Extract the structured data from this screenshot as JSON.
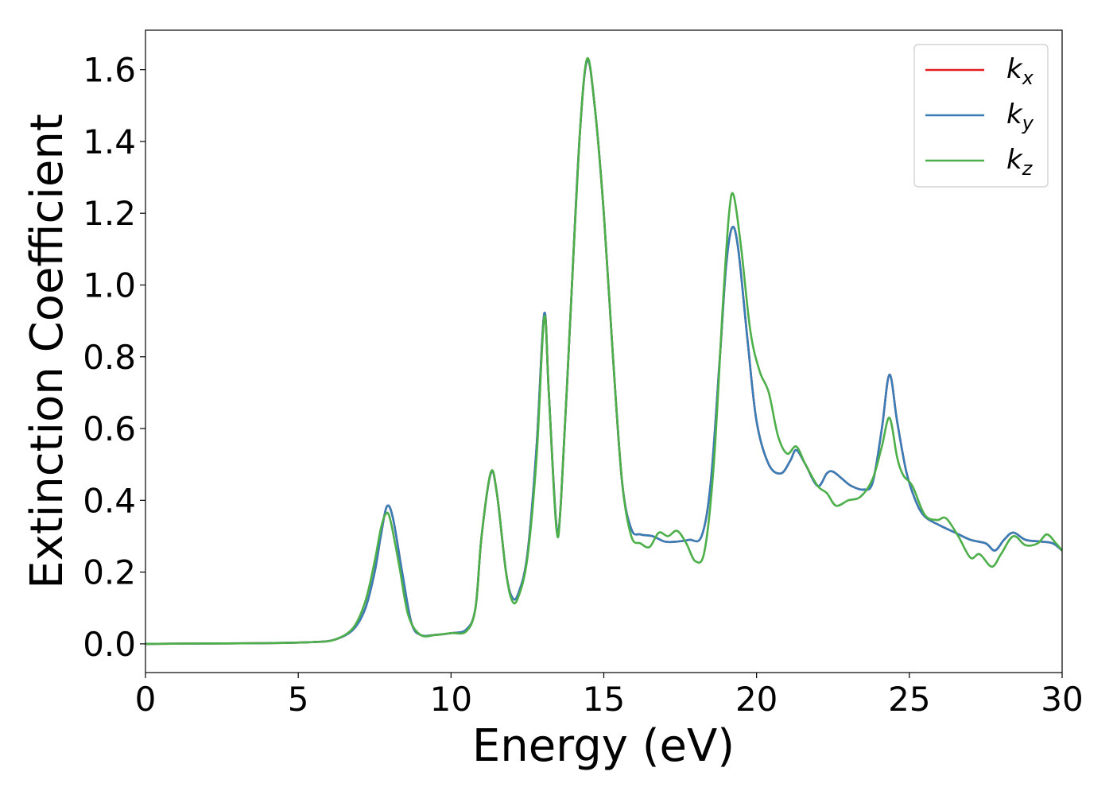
{
  "chart_data": {
    "type": "line",
    "title": "",
    "xlabel": "Energy (eV)",
    "ylabel": "Extinction Coefficient",
    "xlim": [
      0,
      30
    ],
    "ylim": [
      -0.08,
      1.71
    ],
    "xticks": [
      0,
      5,
      10,
      15,
      20,
      25,
      30
    ],
    "xtick_labels": [
      "0",
      "5",
      "10",
      "15",
      "20",
      "25",
      "30"
    ],
    "yticks": [
      0.0,
      0.2,
      0.4,
      0.6,
      0.8,
      1.0,
      1.2,
      1.4,
      1.6
    ],
    "ytick_labels": [
      "0.0",
      "0.2",
      "0.4",
      "0.6",
      "0.8",
      "1.0",
      "1.2",
      "1.4",
      "1.6"
    ],
    "grid": false,
    "legend_position": "top-right",
    "series": [
      {
        "name": "k",
        "subscript": "x",
        "color": "#e41a1c",
        "points": [
          [
            0,
            0.0
          ],
          [
            2,
            0.001
          ],
          [
            4,
            0.002
          ],
          [
            5.5,
            0.005
          ],
          [
            6.2,
            0.012
          ],
          [
            6.8,
            0.04
          ],
          [
            7.2,
            0.1
          ],
          [
            7.5,
            0.2
          ],
          [
            7.7,
            0.3
          ],
          [
            7.9,
            0.383
          ],
          [
            8.1,
            0.35
          ],
          [
            8.4,
            0.2
          ],
          [
            8.7,
            0.06
          ],
          [
            9.0,
            0.025
          ],
          [
            9.5,
            0.025
          ],
          [
            10,
            0.03
          ],
          [
            10.5,
            0.04
          ],
          [
            10.8,
            0.1
          ],
          [
            11.0,
            0.3
          ],
          [
            11.3,
            0.475
          ],
          [
            11.5,
            0.42
          ],
          [
            11.8,
            0.2
          ],
          [
            12.0,
            0.13
          ],
          [
            12.2,
            0.14
          ],
          [
            12.5,
            0.25
          ],
          [
            12.8,
            0.55
          ],
          [
            13.05,
            0.92
          ],
          [
            13.2,
            0.7
          ],
          [
            13.45,
            0.33
          ],
          [
            13.6,
            0.4
          ],
          [
            13.9,
            0.9
          ],
          [
            14.2,
            1.4
          ],
          [
            14.45,
            1.625
          ],
          [
            14.7,
            1.5
          ],
          [
            15.0,
            1.2
          ],
          [
            15.3,
            0.8
          ],
          [
            15.6,
            0.45
          ],
          [
            15.9,
            0.32
          ],
          [
            16.2,
            0.305
          ],
          [
            16.6,
            0.3
          ],
          [
            17.0,
            0.285
          ],
          [
            17.4,
            0.285
          ],
          [
            17.8,
            0.29
          ],
          [
            18.2,
            0.3
          ],
          [
            18.5,
            0.45
          ],
          [
            18.8,
            0.8
          ],
          [
            19.0,
            1.05
          ],
          [
            19.2,
            1.16
          ],
          [
            19.4,
            1.1
          ],
          [
            19.7,
            0.85
          ],
          [
            20.0,
            0.62
          ],
          [
            20.4,
            0.5
          ],
          [
            20.8,
            0.475
          ],
          [
            21.1,
            0.51
          ],
          [
            21.3,
            0.54
          ],
          [
            21.6,
            0.5
          ],
          [
            22.0,
            0.44
          ],
          [
            22.3,
            0.475
          ],
          [
            22.5,
            0.48
          ],
          [
            22.8,
            0.46
          ],
          [
            23.1,
            0.44
          ],
          [
            23.5,
            0.43
          ],
          [
            23.8,
            0.45
          ],
          [
            24.1,
            0.6
          ],
          [
            24.35,
            0.75
          ],
          [
            24.6,
            0.62
          ],
          [
            24.9,
            0.48
          ],
          [
            25.2,
            0.4
          ],
          [
            25.5,
            0.355
          ],
          [
            26.0,
            0.33
          ],
          [
            26.5,
            0.31
          ],
          [
            27.0,
            0.29
          ],
          [
            27.5,
            0.28
          ],
          [
            27.8,
            0.26
          ],
          [
            28.1,
            0.29
          ],
          [
            28.4,
            0.31
          ],
          [
            28.8,
            0.29
          ],
          [
            29.3,
            0.285
          ],
          [
            29.7,
            0.28
          ],
          [
            30.0,
            0.26
          ]
        ]
      },
      {
        "name": "k",
        "subscript": "y",
        "color": "#377eb8",
        "points": [
          [
            0,
            0.0
          ],
          [
            2,
            0.001
          ],
          [
            4,
            0.002
          ],
          [
            5.5,
            0.005
          ],
          [
            6.2,
            0.012
          ],
          [
            6.8,
            0.04
          ],
          [
            7.2,
            0.1
          ],
          [
            7.5,
            0.2
          ],
          [
            7.7,
            0.3
          ],
          [
            7.9,
            0.383
          ],
          [
            8.1,
            0.35
          ],
          [
            8.4,
            0.2
          ],
          [
            8.7,
            0.06
          ],
          [
            9.0,
            0.025
          ],
          [
            9.5,
            0.025
          ],
          [
            10,
            0.03
          ],
          [
            10.5,
            0.04
          ],
          [
            10.8,
            0.1
          ],
          [
            11.0,
            0.3
          ],
          [
            11.3,
            0.475
          ],
          [
            11.5,
            0.42
          ],
          [
            11.8,
            0.2
          ],
          [
            12.0,
            0.13
          ],
          [
            12.2,
            0.14
          ],
          [
            12.5,
            0.25
          ],
          [
            12.8,
            0.55
          ],
          [
            13.05,
            0.92
          ],
          [
            13.2,
            0.7
          ],
          [
            13.45,
            0.33
          ],
          [
            13.6,
            0.4
          ],
          [
            13.9,
            0.9
          ],
          [
            14.2,
            1.4
          ],
          [
            14.45,
            1.625
          ],
          [
            14.7,
            1.5
          ],
          [
            15.0,
            1.2
          ],
          [
            15.3,
            0.8
          ],
          [
            15.6,
            0.45
          ],
          [
            15.9,
            0.32
          ],
          [
            16.2,
            0.305
          ],
          [
            16.6,
            0.3
          ],
          [
            17.0,
            0.285
          ],
          [
            17.4,
            0.285
          ],
          [
            17.8,
            0.29
          ],
          [
            18.2,
            0.3
          ],
          [
            18.5,
            0.45
          ],
          [
            18.8,
            0.8
          ],
          [
            19.0,
            1.05
          ],
          [
            19.2,
            1.16
          ],
          [
            19.4,
            1.1
          ],
          [
            19.7,
            0.85
          ],
          [
            20.0,
            0.62
          ],
          [
            20.4,
            0.5
          ],
          [
            20.8,
            0.475
          ],
          [
            21.1,
            0.51
          ],
          [
            21.3,
            0.54
          ],
          [
            21.6,
            0.5
          ],
          [
            22.0,
            0.44
          ],
          [
            22.3,
            0.475
          ],
          [
            22.5,
            0.48
          ],
          [
            22.8,
            0.46
          ],
          [
            23.1,
            0.44
          ],
          [
            23.5,
            0.43
          ],
          [
            23.8,
            0.45
          ],
          [
            24.1,
            0.6
          ],
          [
            24.35,
            0.75
          ],
          [
            24.6,
            0.62
          ],
          [
            24.9,
            0.48
          ],
          [
            25.2,
            0.4
          ],
          [
            25.5,
            0.355
          ],
          [
            26.0,
            0.33
          ],
          [
            26.5,
            0.31
          ],
          [
            27.0,
            0.29
          ],
          [
            27.5,
            0.28
          ],
          [
            27.8,
            0.26
          ],
          [
            28.1,
            0.29
          ],
          [
            28.4,
            0.31
          ],
          [
            28.8,
            0.29
          ],
          [
            29.3,
            0.285
          ],
          [
            29.7,
            0.28
          ],
          [
            30.0,
            0.26
          ]
        ]
      },
      {
        "name": "k",
        "subscript": "z",
        "color": "#4daf4a",
        "points": [
          [
            0,
            0.0
          ],
          [
            2,
            0.001
          ],
          [
            4,
            0.002
          ],
          [
            5.5,
            0.005
          ],
          [
            6.2,
            0.012
          ],
          [
            6.8,
            0.045
          ],
          [
            7.2,
            0.12
          ],
          [
            7.5,
            0.23
          ],
          [
            7.7,
            0.32
          ],
          [
            7.85,
            0.36
          ],
          [
            8.0,
            0.35
          ],
          [
            8.3,
            0.22
          ],
          [
            8.6,
            0.08
          ],
          [
            9.0,
            0.025
          ],
          [
            9.5,
            0.025
          ],
          [
            10,
            0.03
          ],
          [
            10.5,
            0.035
          ],
          [
            10.8,
            0.1
          ],
          [
            11.0,
            0.3
          ],
          [
            11.3,
            0.478
          ],
          [
            11.5,
            0.42
          ],
          [
            11.8,
            0.2
          ],
          [
            12.0,
            0.12
          ],
          [
            12.2,
            0.13
          ],
          [
            12.5,
            0.24
          ],
          [
            12.8,
            0.52
          ],
          [
            13.05,
            0.91
          ],
          [
            13.2,
            0.7
          ],
          [
            13.45,
            0.32
          ],
          [
            13.6,
            0.4
          ],
          [
            13.9,
            0.9
          ],
          [
            14.2,
            1.4
          ],
          [
            14.45,
            1.63
          ],
          [
            14.7,
            1.5
          ],
          [
            15.0,
            1.2
          ],
          [
            15.3,
            0.8
          ],
          [
            15.6,
            0.45
          ],
          [
            15.9,
            0.3
          ],
          [
            16.2,
            0.28
          ],
          [
            16.5,
            0.27
          ],
          [
            16.8,
            0.31
          ],
          [
            17.1,
            0.3
          ],
          [
            17.4,
            0.315
          ],
          [
            17.7,
            0.28
          ],
          [
            18.0,
            0.23
          ],
          [
            18.3,
            0.26
          ],
          [
            18.6,
            0.5
          ],
          [
            18.9,
            0.95
          ],
          [
            19.1,
            1.2
          ],
          [
            19.25,
            1.25
          ],
          [
            19.5,
            1.1
          ],
          [
            19.8,
            0.87
          ],
          [
            20.1,
            0.76
          ],
          [
            20.4,
            0.7
          ],
          [
            20.7,
            0.58
          ],
          [
            21.0,
            0.53
          ],
          [
            21.3,
            0.55
          ],
          [
            21.6,
            0.5
          ],
          [
            22.0,
            0.44
          ],
          [
            22.3,
            0.42
          ],
          [
            22.6,
            0.385
          ],
          [
            23.0,
            0.4
          ],
          [
            23.4,
            0.41
          ],
          [
            23.8,
            0.46
          ],
          [
            24.1,
            0.55
          ],
          [
            24.35,
            0.63
          ],
          [
            24.6,
            0.52
          ],
          [
            24.8,
            0.47
          ],
          [
            25.1,
            0.44
          ],
          [
            25.5,
            0.36
          ],
          [
            25.9,
            0.345
          ],
          [
            26.2,
            0.35
          ],
          [
            26.6,
            0.3
          ],
          [
            27.0,
            0.24
          ],
          [
            27.3,
            0.25
          ],
          [
            27.7,
            0.215
          ],
          [
            28.0,
            0.25
          ],
          [
            28.4,
            0.3
          ],
          [
            28.8,
            0.275
          ],
          [
            29.2,
            0.28
          ],
          [
            29.5,
            0.305
          ],
          [
            29.8,
            0.28
          ],
          [
            30.0,
            0.26
          ]
        ]
      }
    ]
  }
}
